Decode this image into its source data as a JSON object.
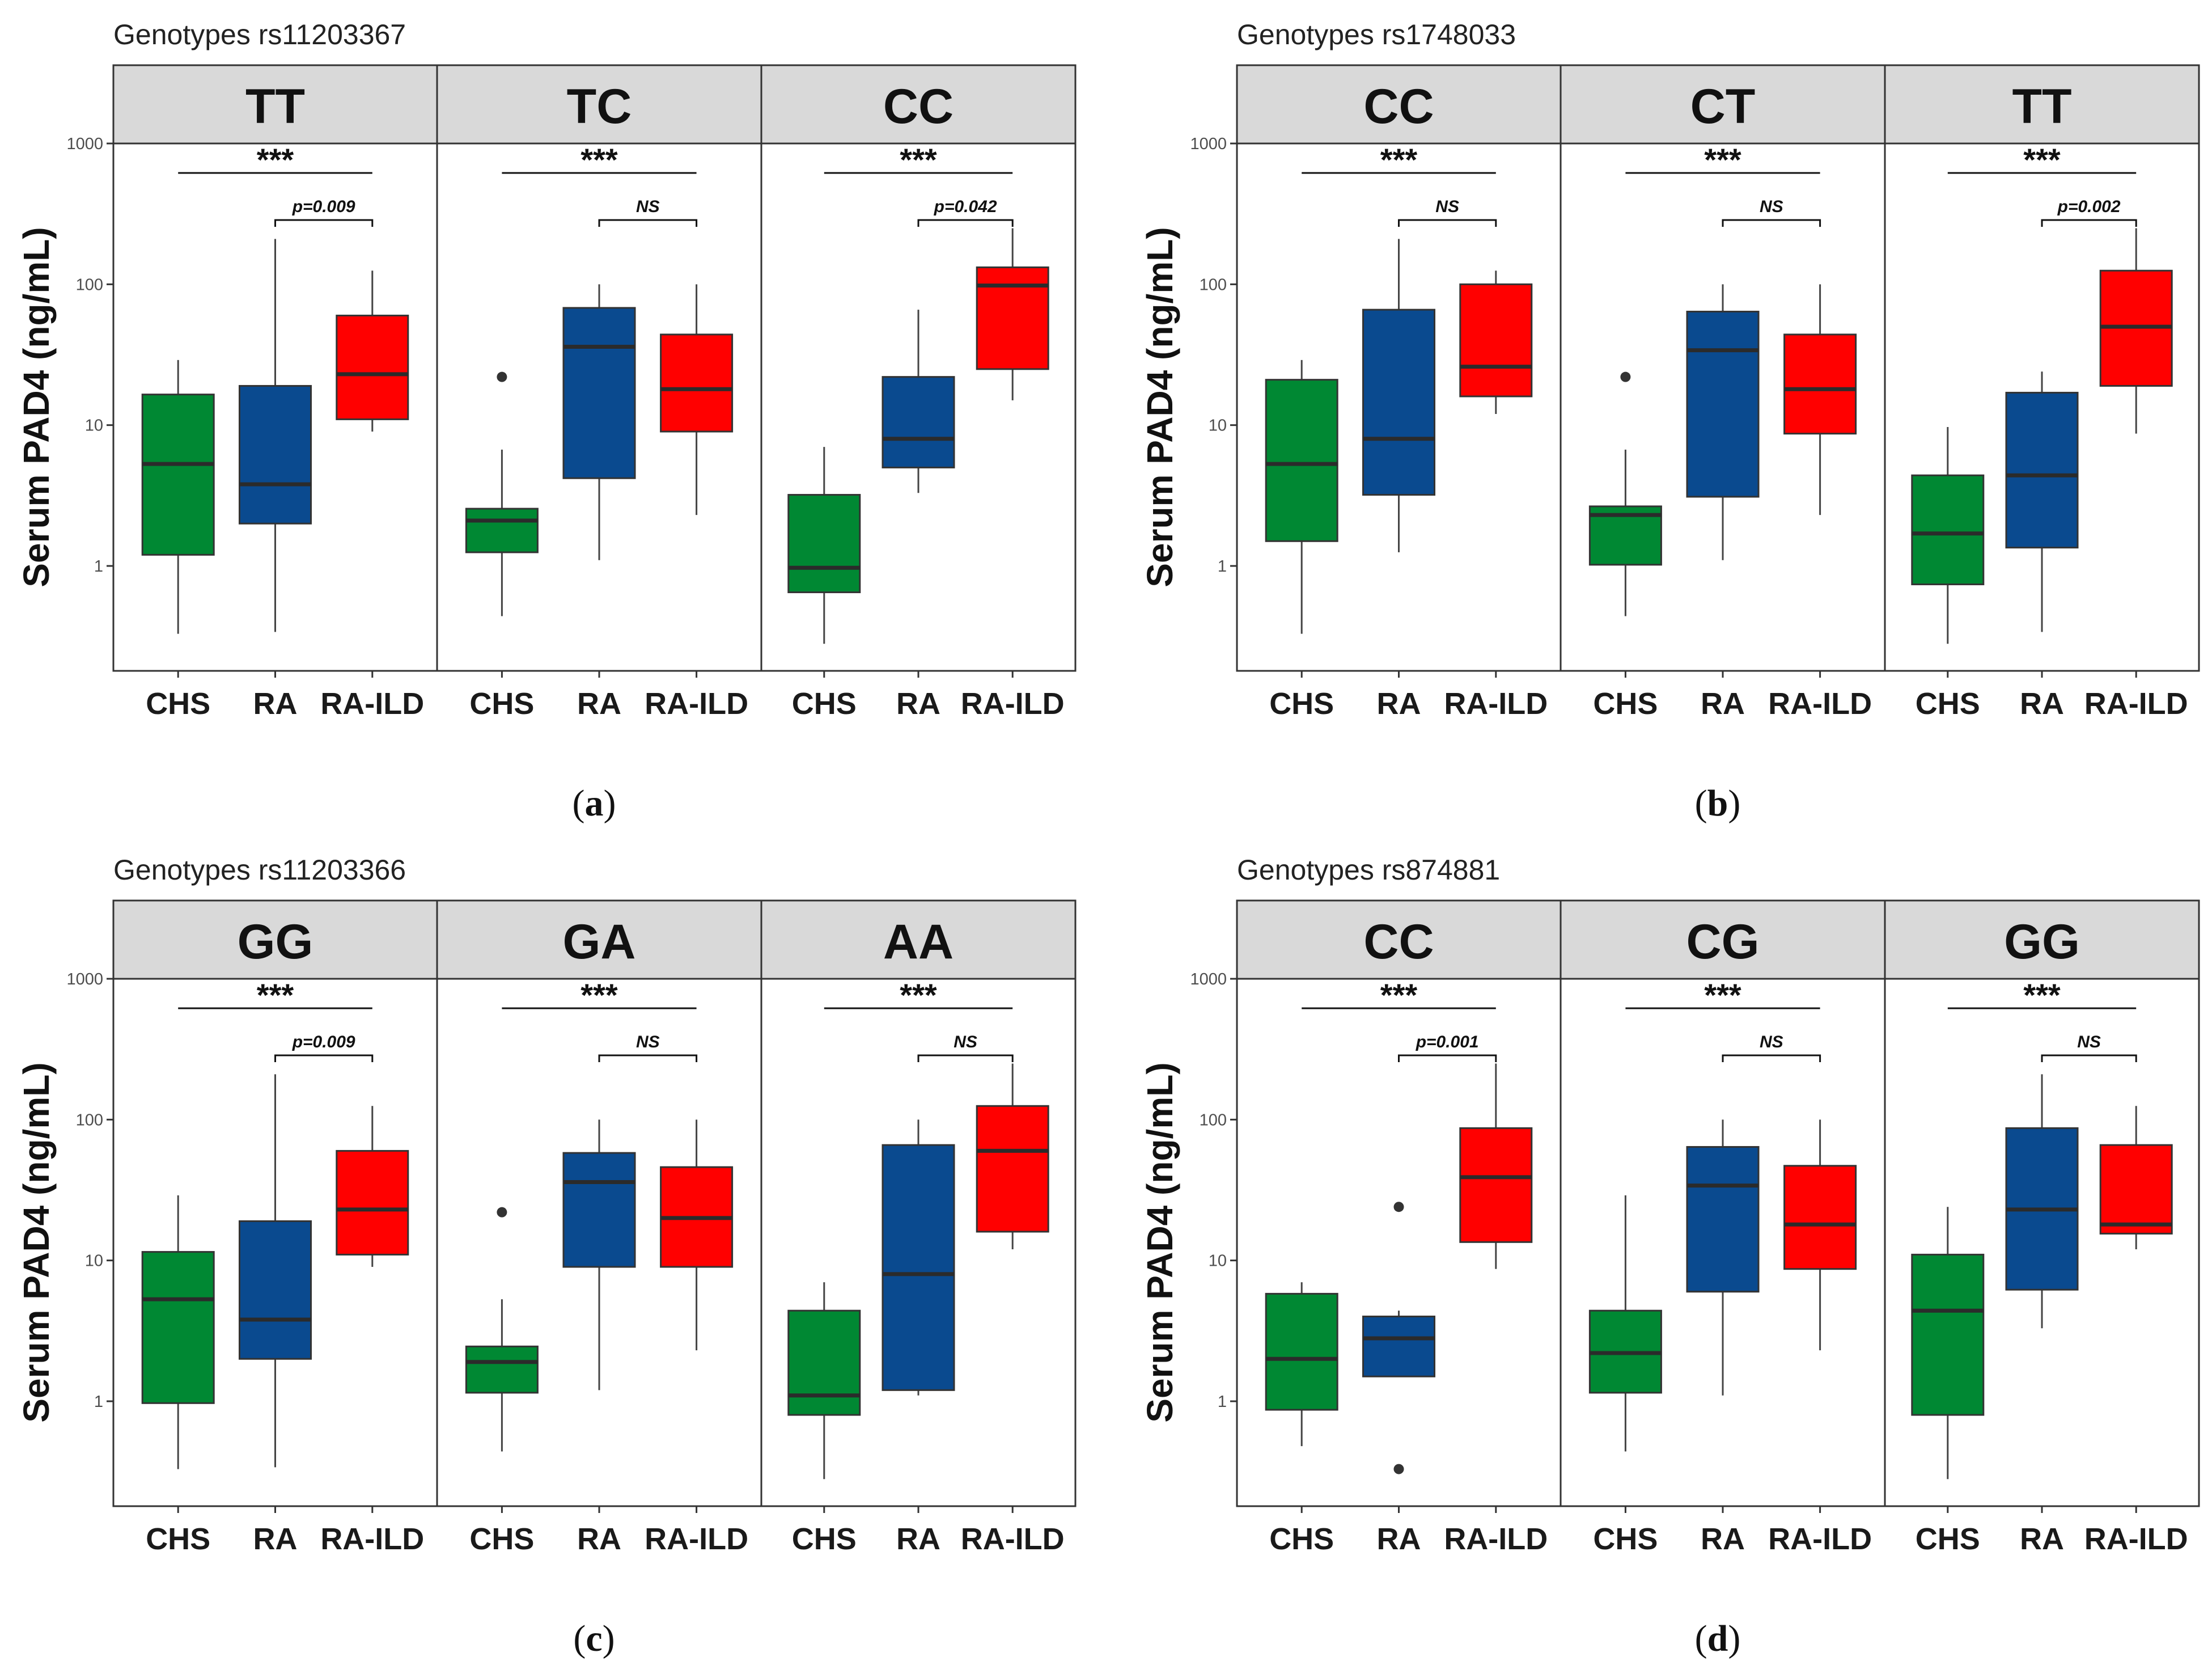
{
  "colors": {
    "CHS": "#008833",
    "RA": "#0a4a8f",
    "RA-ILD": "#ff0000",
    "strip": "#d9d9d9"
  },
  "chart_data": [
    {
      "type": "boxplot",
      "panel": "a",
      "title": "Genotypes rs11203367",
      "ylabel": "Serum PAD4 (ng/mL)",
      "yscale": "log10",
      "ylim": [
        0.15,
        1000
      ],
      "yticks": [
        "1",
        "10",
        "100",
        "1000"
      ],
      "categories": [
        "CHS",
        "RA",
        "RA-ILD"
      ],
      "facets": [
        {
          "label": "TT",
          "overall": "***",
          "comparison": "p=0.009",
          "boxes": [
            {
              "group": "CHS",
              "whisker_low": 0.33,
              "q1": 1.2,
              "median": 5.3,
              "q3": 16.5,
              "whisker_high": 29
            },
            {
              "group": "RA",
              "whisker_low": 0.34,
              "q1": 2.0,
              "median": 3.8,
              "q3": 19,
              "whisker_high": 210
            },
            {
              "group": "RA-ILD",
              "whisker_low": 9,
              "q1": 11,
              "median": 23,
              "q3": 60,
              "whisker_high": 125
            }
          ]
        },
        {
          "label": "TC",
          "overall": "***",
          "comparison": "NS",
          "boxes": [
            {
              "group": "CHS",
              "whisker_low": 0.44,
              "q1": 1.25,
              "median": 2.1,
              "q3": 2.55,
              "whisker_high": 6.7,
              "outliers": [
                22
              ]
            },
            {
              "group": "RA",
              "whisker_low": 1.1,
              "q1": 4.2,
              "median": 36,
              "q3": 68,
              "whisker_high": 100
            },
            {
              "group": "RA-ILD",
              "whisker_low": 2.3,
              "q1": 9,
              "median": 18,
              "q3": 44,
              "whisker_high": 100
            }
          ]
        },
        {
          "label": "CC",
          "overall": "***",
          "comparison": "p=0.042",
          "boxes": [
            {
              "group": "CHS",
              "whisker_low": 0.28,
              "q1": 0.65,
              "median": 0.97,
              "q3": 3.2,
              "whisker_high": 7
            },
            {
              "group": "RA",
              "whisker_low": 3.3,
              "q1": 5,
              "median": 8,
              "q3": 22,
              "whisker_high": 66
            },
            {
              "group": "RA-ILD",
              "whisker_low": 15,
              "q1": 25,
              "median": 98,
              "q3": 132,
              "whisker_high": 250
            }
          ]
        }
      ]
    },
    {
      "type": "boxplot",
      "panel": "b",
      "title": "Genotypes rs1748033",
      "ylabel": "Serum PAD4 (ng/mL)",
      "yscale": "log10",
      "ylim": [
        0.15,
        1000
      ],
      "yticks": [
        "1",
        "10",
        "100",
        "1000"
      ],
      "categories": [
        "CHS",
        "RA",
        "RA-ILD"
      ],
      "facets": [
        {
          "label": "CC",
          "overall": "***",
          "comparison": "NS",
          "boxes": [
            {
              "group": "CHS",
              "whisker_low": 0.33,
              "q1": 1.5,
              "median": 5.3,
              "q3": 21,
              "whisker_high": 29
            },
            {
              "group": "RA",
              "whisker_low": 1.25,
              "q1": 3.2,
              "median": 8,
              "q3": 66,
              "whisker_high": 210
            },
            {
              "group": "RA-ILD",
              "whisker_low": 12,
              "q1": 16,
              "median": 26,
              "q3": 100,
              "whisker_high": 125
            }
          ]
        },
        {
          "label": "CT",
          "overall": "***",
          "comparison": "NS",
          "boxes": [
            {
              "group": "CHS",
              "whisker_low": 0.44,
              "q1": 1.02,
              "median": 2.3,
              "q3": 2.65,
              "whisker_high": 6.7,
              "outliers": [
                22
              ]
            },
            {
              "group": "RA",
              "whisker_low": 1.1,
              "q1": 3.1,
              "median": 34,
              "q3": 64,
              "whisker_high": 100
            },
            {
              "group": "RA-ILD",
              "whisker_low": 2.3,
              "q1": 8.7,
              "median": 18,
              "q3": 44,
              "whisker_high": 100
            }
          ]
        },
        {
          "label": "TT",
          "overall": "***",
          "comparison": "p=0.002",
          "boxes": [
            {
              "group": "CHS",
              "whisker_low": 0.28,
              "q1": 0.74,
              "median": 1.7,
              "q3": 4.4,
              "whisker_high": 9.7
            },
            {
              "group": "RA",
              "whisker_low": 0.34,
              "q1": 1.35,
              "median": 4.4,
              "q3": 17,
              "whisker_high": 24
            },
            {
              "group": "RA-ILD",
              "whisker_low": 8.7,
              "q1": 19,
              "median": 50,
              "q3": 125,
              "whisker_high": 250
            }
          ]
        }
      ]
    },
    {
      "type": "boxplot",
      "panel": "c",
      "title": "Genotypes rs11203366",
      "ylabel": "Serum PAD4 (ng/mL)",
      "yscale": "log10",
      "ylim": [
        0.15,
        1000
      ],
      "yticks": [
        "1",
        "10",
        "100",
        "1000"
      ],
      "categories": [
        "CHS",
        "RA",
        "RA-ILD"
      ],
      "facets": [
        {
          "label": "GG",
          "overall": "***",
          "comparison": "p=0.009",
          "boxes": [
            {
              "group": "CHS",
              "whisker_low": 0.33,
              "q1": 0.97,
              "median": 5.3,
              "q3": 11.5,
              "whisker_high": 29
            },
            {
              "group": "RA",
              "whisker_low": 0.34,
              "q1": 2.0,
              "median": 3.8,
              "q3": 19,
              "whisker_high": 210
            },
            {
              "group": "RA-ILD",
              "whisker_low": 9,
              "q1": 11,
              "median": 23,
              "q3": 60,
              "whisker_high": 125
            }
          ]
        },
        {
          "label": "GA",
          "overall": "***",
          "comparison": "NS",
          "boxes": [
            {
              "group": "CHS",
              "whisker_low": 0.44,
              "q1": 1.15,
              "median": 1.9,
              "q3": 2.45,
              "whisker_high": 5.3,
              "outliers": [
                22
              ]
            },
            {
              "group": "RA",
              "whisker_low": 1.2,
              "q1": 9,
              "median": 36,
              "q3": 58,
              "whisker_high": 100
            },
            {
              "group": "RA-ILD",
              "whisker_low": 2.3,
              "q1": 9,
              "median": 20,
              "q3": 46,
              "whisker_high": 100
            }
          ]
        },
        {
          "label": "AA",
          "overall": "***",
          "comparison": "NS",
          "boxes": [
            {
              "group": "CHS",
              "whisker_low": 0.28,
              "q1": 0.8,
              "median": 1.1,
              "q3": 4.4,
              "whisker_high": 7
            },
            {
              "group": "RA",
              "whisker_low": 1.1,
              "q1": 1.2,
              "median": 8,
              "q3": 66,
              "whisker_high": 100
            },
            {
              "group": "RA-ILD",
              "whisker_low": 12,
              "q1": 16,
              "median": 60,
              "q3": 125,
              "whisker_high": 250
            }
          ]
        }
      ]
    },
    {
      "type": "boxplot",
      "panel": "d",
      "title": "Genotypes rs874881",
      "ylabel": "Serum PAD4 (ng/mL)",
      "yscale": "log10",
      "ylim": [
        0.15,
        1000
      ],
      "yticks": [
        "1",
        "10",
        "100",
        "1000"
      ],
      "categories": [
        "CHS",
        "RA",
        "RA-ILD"
      ],
      "facets": [
        {
          "label": "CC",
          "overall": "***",
          "comparison": "p=0.001",
          "boxes": [
            {
              "group": "CHS",
              "whisker_low": 0.48,
              "q1": 0.87,
              "median": 2.0,
              "q3": 5.8,
              "whisker_high": 7
            },
            {
              "group": "RA",
              "whisker_low": 1.5,
              "q1": 1.5,
              "median": 2.8,
              "q3": 4.0,
              "whisker_high": 4.4,
              "outliers": [
                24,
                0.33
              ]
            },
            {
              "group": "RA-ILD",
              "whisker_low": 8.7,
              "q1": 13.5,
              "median": 39,
              "q3": 87,
              "whisker_high": 250
            }
          ]
        },
        {
          "label": "CG",
          "overall": "***",
          "comparison": "NS",
          "boxes": [
            {
              "group": "CHS",
              "whisker_low": 0.44,
              "q1": 1.15,
              "median": 2.2,
              "q3": 4.4,
              "whisker_high": 29
            },
            {
              "group": "RA",
              "whisker_low": 1.1,
              "q1": 6,
              "median": 34,
              "q3": 64,
              "whisker_high": 100
            },
            {
              "group": "RA-ILD",
              "whisker_low": 2.3,
              "q1": 8.7,
              "median": 18,
              "q3": 47,
              "whisker_high": 100
            }
          ]
        },
        {
          "label": "GG",
          "overall": "***",
          "comparison": "NS",
          "boxes": [
            {
              "group": "CHS",
              "whisker_low": 0.28,
              "q1": 0.8,
              "median": 4.4,
              "q3": 11,
              "whisker_high": 24
            },
            {
              "group": "RA",
              "whisker_low": 3.3,
              "q1": 6.2,
              "median": 23,
              "q3": 87,
              "whisker_high": 210
            },
            {
              "group": "RA-ILD",
              "whisker_low": 12,
              "q1": 15.5,
              "median": 18,
              "q3": 66,
              "whisker_high": 125
            }
          ]
        }
      ]
    }
  ]
}
